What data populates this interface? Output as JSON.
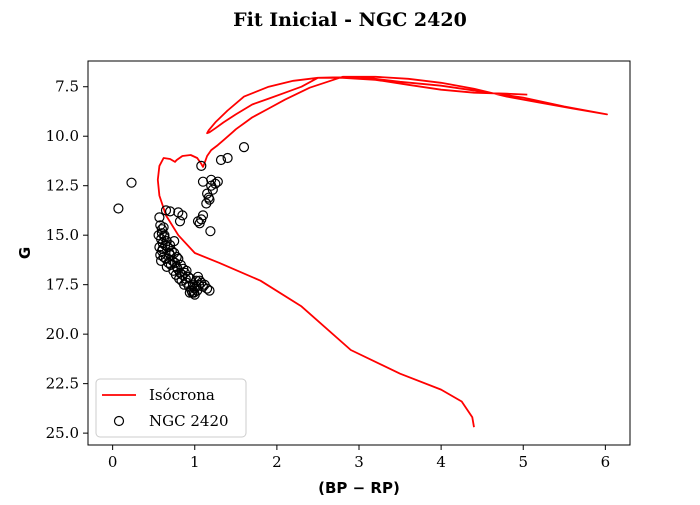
{
  "chart_data": {
    "type": "scatter",
    "title": "Fit Inicial - NGC 2420",
    "xlabel": "(BP − RP)",
    "ylabel": "G",
    "xlim": [
      -0.3,
      6.3
    ],
    "ylim": [
      25.6,
      6.2
    ],
    "y_inverted": true,
    "xticks": [
      0,
      1,
      2,
      3,
      4,
      5,
      6
    ],
    "xtick_labels": [
      "0",
      "1",
      "2",
      "3",
      "4",
      "5",
      "6"
    ],
    "yticks": [
      7.5,
      10.0,
      12.5,
      15.0,
      17.5,
      20.0,
      22.5,
      25.0
    ],
    "ytick_labels": [
      "7.5",
      "10.0",
      "12.5",
      "15.0",
      "17.5",
      "20.0",
      "22.5",
      "25.0"
    ],
    "grid": false,
    "legend_position": "lower-left",
    "series": [
      {
        "name": "Isócrona",
        "kind": "line",
        "color": "#ff0000",
        "x": [
          4.4,
          4.38,
          4.25,
          4.0,
          3.5,
          2.9,
          2.3,
          1.8,
          1.3,
          1.0,
          0.8,
          0.65,
          0.57,
          0.55,
          0.57,
          0.62,
          0.7,
          0.76,
          0.78,
          0.85,
          0.95,
          1.03,
          1.08,
          1.1,
          1.12,
          1.15,
          1.2,
          1.28,
          1.35,
          1.42,
          1.46,
          1.5,
          1.55,
          1.6,
          1.65,
          1.7,
          1.9,
          2.1,
          2.4,
          2.8,
          3.2,
          3.6,
          4.0,
          4.4,
          4.8,
          5.2,
          5.6,
          6.02,
          6.02,
          5.5,
          5.0,
          4.5,
          4.0,
          3.5,
          3.0,
          2.5,
          2.3,
          2.1,
          1.9,
          1.7,
          1.5,
          1.35,
          1.25,
          1.18,
          1.15,
          1.17,
          1.25,
          1.4,
          1.6,
          1.9,
          2.2,
          2.5,
          2.8,
          3.2,
          3.6,
          4.0,
          4.4,
          4.8,
          5.05
        ],
        "y": [
          24.7,
          24.2,
          23.4,
          22.8,
          22.0,
          20.8,
          18.6,
          17.3,
          16.4,
          15.9,
          15.0,
          14.0,
          13.0,
          12.2,
          11.5,
          11.1,
          11.15,
          11.3,
          11.2,
          11.0,
          10.95,
          11.1,
          11.4,
          11.55,
          11.35,
          11.0,
          10.7,
          10.45,
          10.2,
          9.95,
          9.8,
          9.65,
          9.5,
          9.35,
          9.2,
          9.05,
          8.6,
          8.15,
          7.55,
          7.0,
          7.0,
          7.1,
          7.3,
          7.6,
          8.0,
          8.3,
          8.6,
          8.9,
          8.9,
          8.5,
          8.05,
          7.75,
          7.45,
          7.25,
          7.0,
          7.05,
          7.5,
          7.8,
          8.1,
          8.4,
          8.9,
          9.3,
          9.6,
          9.8,
          9.85,
          9.7,
          9.3,
          8.7,
          8.0,
          7.5,
          7.2,
          7.05,
          7.05,
          7.15,
          7.4,
          7.65,
          7.8,
          7.85,
          7.9
        ]
      },
      {
        "name": "NGC 2420",
        "kind": "scatter",
        "marker": "open-circle",
        "color": "#000000",
        "x": [
          0.07,
          0.23,
          1.08,
          1.32,
          1.4,
          1.6,
          1.1,
          1.15,
          1.2,
          1.25,
          1.17,
          1.22,
          1.28,
          1.14,
          1.18,
          1.2,
          1.1,
          1.08,
          1.06,
          1.04,
          1.19,
          0.57,
          0.65,
          0.7,
          0.8,
          0.85,
          0.58,
          0.6,
          0.62,
          0.56,
          0.59,
          0.61,
          0.63,
          0.57,
          0.6,
          0.64,
          0.66,
          0.58,
          0.61,
          0.67,
          0.69,
          0.59,
          0.62,
          0.72,
          0.65,
          0.7,
          0.75,
          0.68,
          0.73,
          0.78,
          0.66,
          0.71,
          0.76,
          0.8,
          0.74,
          0.79,
          0.83,
          0.77,
          0.82,
          0.86,
          0.81,
          0.85,
          0.88,
          0.84,
          0.89,
          0.92,
          0.87,
          0.9,
          0.95,
          0.93,
          0.98,
          0.96,
          1.0,
          0.94,
          0.99,
          1.02,
          1.05,
          1.0,
          1.03,
          1.08,
          1.06,
          1.1,
          1.12,
          1.04,
          1.15,
          1.02,
          0.97,
          0.6,
          0.82,
          1.18,
          0.75,
          0.63,
          0.78,
          0.9,
          0.7
        ],
        "y": [
          13.65,
          12.35,
          11.5,
          11.2,
          11.1,
          10.55,
          12.3,
          12.9,
          12.2,
          12.4,
          13.1,
          12.7,
          12.3,
          13.4,
          13.2,
          12.5,
          14.0,
          14.2,
          14.4,
          14.3,
          14.8,
          14.1,
          13.75,
          13.8,
          13.85,
          14.0,
          14.5,
          14.7,
          14.6,
          15.0,
          15.2,
          15.4,
          15.1,
          15.6,
          15.8,
          15.5,
          15.3,
          16.0,
          15.7,
          15.6,
          15.9,
          16.3,
          16.1,
          15.8,
          16.2,
          16.0,
          15.9,
          16.4,
          16.3,
          16.1,
          16.6,
          16.5,
          16.4,
          16.2,
          16.8,
          16.7,
          16.5,
          17.0,
          16.9,
          16.7,
          17.2,
          17.0,
          16.9,
          17.3,
          17.2,
          17.1,
          17.5,
          17.4,
          17.2,
          17.6,
          17.5,
          17.8,
          17.7,
          17.9,
          17.9,
          17.6,
          17.5,
          18.0,
          17.8,
          17.4,
          17.3,
          17.6,
          17.5,
          17.1,
          17.7,
          17.3,
          17.9,
          14.9,
          14.3,
          17.8,
          15.3,
          15.0,
          16.6,
          16.8,
          15.5
        ]
      }
    ]
  }
}
